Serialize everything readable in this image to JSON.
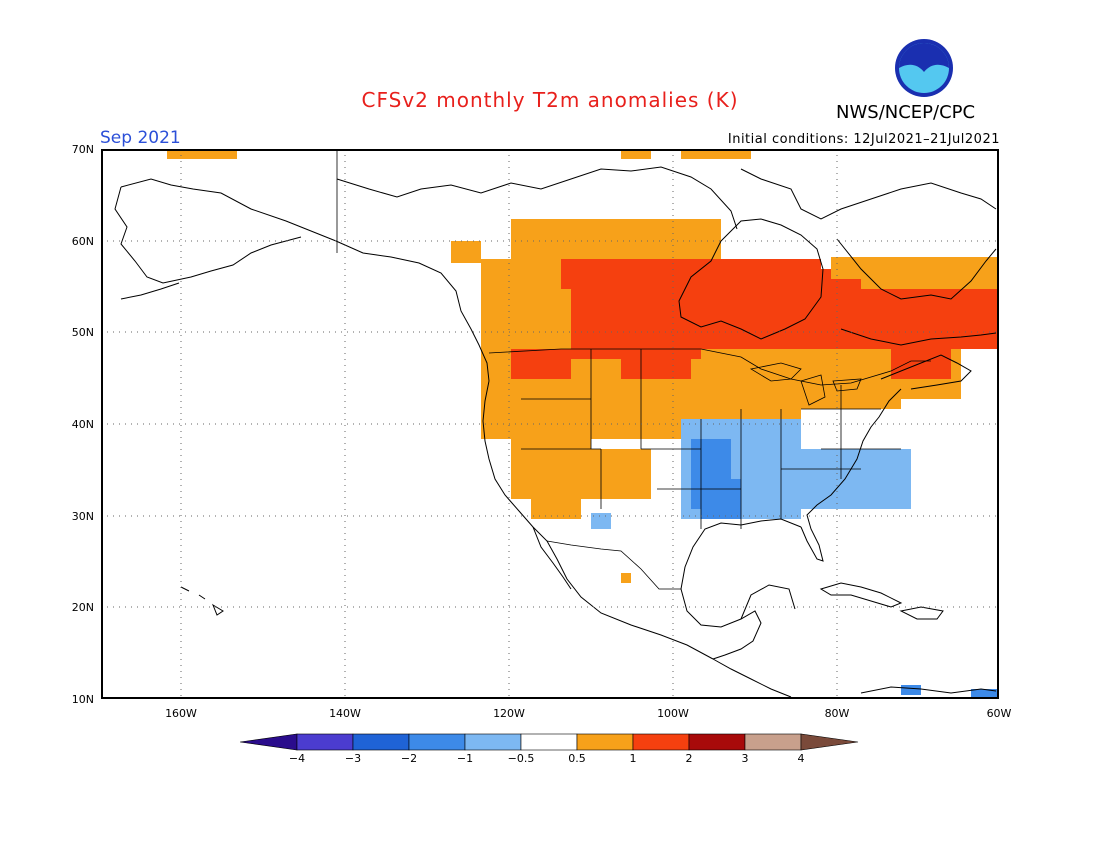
{
  "header": {
    "title": "CFSv2 monthly T2m anomalies (K)",
    "agency": "NWS/NCEP/CPC",
    "month": "Sep 2021",
    "initial_conditions": "Initial conditions: 12Jul2021–21Jul2021",
    "logo_text": "NOAA"
  },
  "map": {
    "lon_range": [
      -170,
      -60
    ],
    "lat_range": [
      10,
      70
    ],
    "lat_labels": [
      "70N",
      "60N",
      "50N",
      "40N",
      "30N",
      "20N",
      "10N"
    ],
    "lon_labels": [
      "160W",
      "140W",
      "120W",
      "100W",
      "80W",
      "60W"
    ],
    "grid": "dotted"
  },
  "colorbar": {
    "labels": [
      "−4",
      "−3",
      "−2",
      "−1",
      "−0.5",
      "0.5",
      "1",
      "2",
      "3",
      "4"
    ],
    "colors": [
      "#2a0c8c",
      "#4b3ccf",
      "#1f63d6",
      "#3d8ae8",
      "#7db8f2",
      "#ffffff",
      "#f7a11a",
      "#f5400f",
      "#a80a0a",
      "#c8a08c",
      "#7a4a3a"
    ]
  },
  "colors": {
    "weak_warm": "#f7a11a",
    "strong_warm": "#f5400f",
    "weak_cool": "#7db8f2",
    "mid_cool": "#3d8ae8"
  }
}
